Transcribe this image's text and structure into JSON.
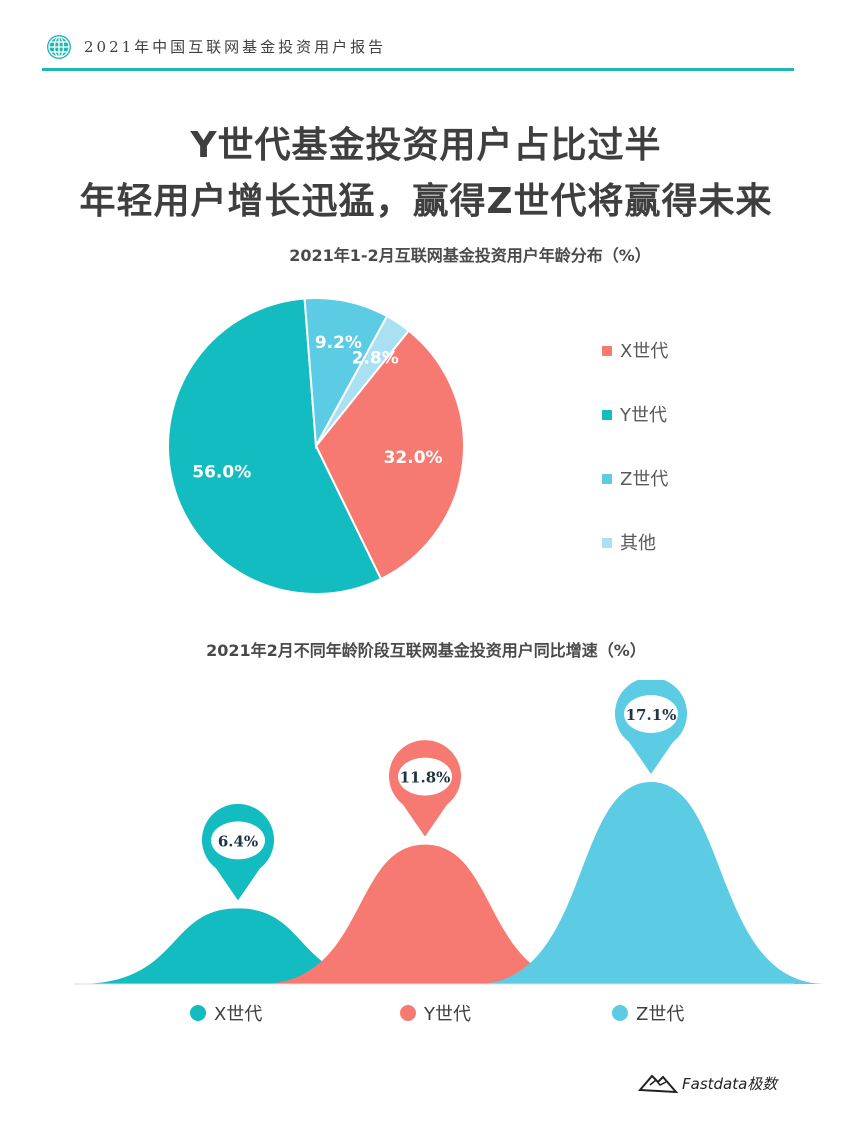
{
  "header": {
    "title": "2021年中国互联网基金投资用户报告",
    "icon": "globe-icon",
    "accent": "#1fb7b3"
  },
  "headline": {
    "line1": "Y世代基金投资用户占比过半",
    "line2": "年轻用户增长迅猛，赢得Z世代将赢得未来"
  },
  "chart_data": [
    {
      "type": "pie",
      "title": "2021年1-2月互联网基金投资用户年龄分布（%）",
      "categories": [
        "X世代",
        "Y世代",
        "Z世代",
        "其他"
      ],
      "values": [
        32.0,
        56.0,
        9.2,
        2.8
      ],
      "labels": [
        "32.0%",
        "56.0%",
        "9.2%",
        "2.8%"
      ],
      "colors": [
        "#f77a72",
        "#12bcc0",
        "#5ccbe4",
        "#a9e1f2"
      ],
      "legend": "right"
    },
    {
      "type": "area",
      "title": "2021年2月不同年龄阶段互联网基金投资用户同比增速（%）",
      "categories": [
        "X世代",
        "Y世代",
        "Z世代"
      ],
      "values": [
        6.4,
        11.8,
        17.1
      ],
      "labels": [
        "6.4%",
        "11.8%",
        "17.1%"
      ],
      "colors": [
        "#12bcc0",
        "#f77a72",
        "#5ccbe4"
      ],
      "legend": "bottom"
    }
  ],
  "footer": {
    "brand": "Fastdata极数",
    "icon": "mountain-logo-icon"
  }
}
